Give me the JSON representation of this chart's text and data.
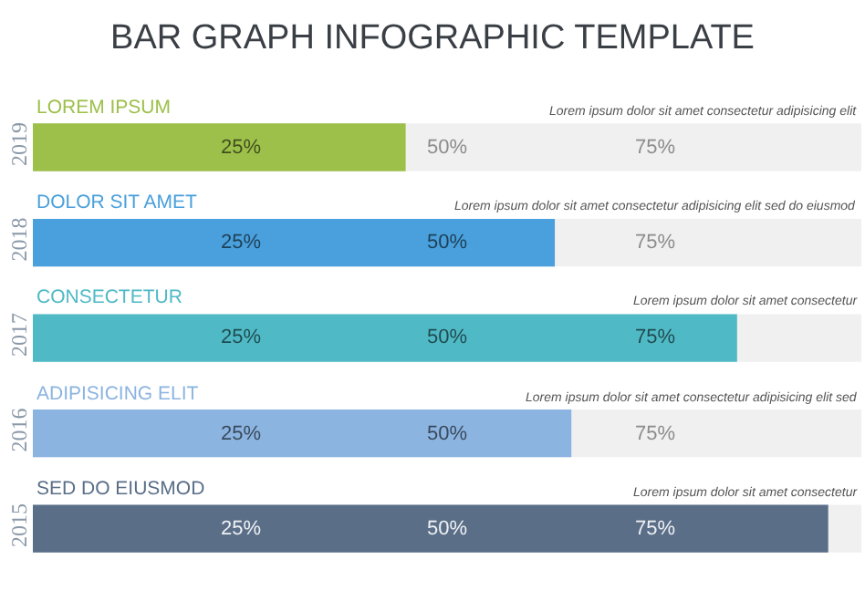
{
  "chart_data": {
    "type": "bar",
    "orientation": "horizontal",
    "title": "BAR GRAPH INFOGRAPHIC TEMPLATE",
    "categories": [
      "2019",
      "2018",
      "2017",
      "2016",
      "2015"
    ],
    "values": [
      45,
      63,
      85,
      65,
      96
    ],
    "colors": [
      "#9dc04a",
      "#4aa0dc",
      "#4fbac6",
      "#8cb4e0",
      "#5a6e88"
    ],
    "xlim": [
      0,
      100
    ],
    "xticks": [
      {
        "value": 25,
        "label": "25%"
      },
      {
        "value": 50,
        "label": "50%"
      },
      {
        "value": 75,
        "label": "75%"
      }
    ],
    "grid": false,
    "legend": false,
    "annotations": [
      "LOREM IPSUM",
      "Lorem ipsum dolor sit amet consectetur adipisicing elit",
      "DOLOR SIT AMET",
      "Lorem ipsum dolor sit amet consectetur adipisicing elit sed do eiusmod",
      "CONSECTETUR",
      "Lorem ipsum dolor sit amet consectetur",
      "ADIPISICING ELIT",
      "Lorem ipsum dolor sit amet consectetur adipisicing elit sed",
      "SED DO EIUSMOD",
      "Lorem ipsum dolor sit amet consectetur"
    ]
  }
}
